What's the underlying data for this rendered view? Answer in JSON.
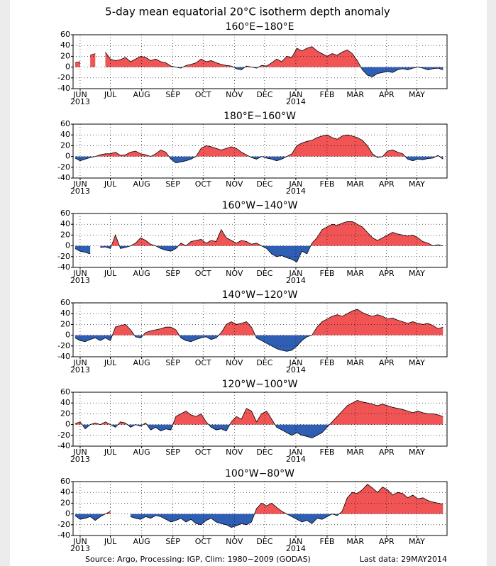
{
  "title": "5-day mean equatorial 20°C isotherm depth anomaly",
  "source": "Source: Argo, Processing: IGP, Clim: 1980−2009 (GODAS)",
  "last_data": "Last data: 29MAY2014",
  "chart_data": [
    {
      "type": "area",
      "title": "160°E−180°E",
      "pos_color": "#f05454",
      "neg_color": "#2f5fb4",
      "grid": true,
      "xlim": [
        -7,
        364
      ],
      "ylim": [
        -40,
        60
      ],
      "yticks": [
        -40,
        -20,
        0,
        20,
        40,
        60
      ],
      "xticks": [
        {
          "value": 0,
          "label": "JUN"
        },
        {
          "value": 30,
          "label": "JUL"
        },
        {
          "value": 61,
          "label": "AUG"
        },
        {
          "value": 92,
          "label": "SEP"
        },
        {
          "value": 122,
          "label": "OCT"
        },
        {
          "value": 153,
          "label": "NOV"
        },
        {
          "value": 183,
          "label": "DEC"
        },
        {
          "value": 214,
          "label": "JAN"
        },
        {
          "value": 245,
          "label": "FEB"
        },
        {
          "value": 273,
          "label": "MAR"
        },
        {
          "value": 304,
          "label": "APR"
        },
        {
          "value": 334,
          "label": "MAY"
        }
      ],
      "year_labels": [
        {
          "value": 0,
          "label": "2013"
        },
        {
          "value": 214,
          "label": "2014"
        }
      ],
      "x": [
        -5,
        0,
        5,
        10,
        15,
        20,
        25,
        30,
        35,
        40,
        45,
        50,
        55,
        60,
        65,
        70,
        75,
        80,
        85,
        90,
        95,
        100,
        105,
        110,
        115,
        120,
        125,
        130,
        135,
        140,
        145,
        150,
        155,
        160,
        165,
        170,
        175,
        180,
        185,
        190,
        195,
        200,
        205,
        210,
        215,
        220,
        225,
        230,
        235,
        240,
        245,
        250,
        255,
        260,
        265,
        270,
        275,
        280,
        285,
        290,
        295,
        300,
        305,
        310,
        315,
        320,
        325,
        330,
        335,
        340,
        345,
        350,
        355,
        360
      ],
      "values": [
        8,
        10,
        null,
        22,
        25,
        null,
        28,
        15,
        12,
        14,
        18,
        10,
        15,
        20,
        18,
        12,
        15,
        10,
        8,
        2,
        0,
        -2,
        3,
        5,
        8,
        15,
        10,
        12,
        8,
        5,
        3,
        2,
        -3,
        -5,
        2,
        0,
        -2,
        3,
        2,
        8,
        15,
        10,
        20,
        18,
        35,
        30,
        35,
        38,
        30,
        25,
        20,
        25,
        22,
        28,
        32,
        25,
        12,
        -5,
        -15,
        -18,
        -12,
        -10,
        -8,
        -10,
        -5,
        -3,
        -5,
        -2,
        0,
        -2,
        -5,
        -3,
        -2,
        -5
      ]
    },
    {
      "type": "area",
      "title": "180°E−160°W",
      "pos_color": "#f05454",
      "neg_color": "#2f5fb4",
      "grid": true,
      "xlim": [
        -7,
        364
      ],
      "ylim": [
        -40,
        60
      ],
      "yticks": [
        -40,
        -20,
        0,
        20,
        40,
        60
      ],
      "xticks": [
        {
          "value": 0,
          "label": "JUN"
        },
        {
          "value": 30,
          "label": "JUL"
        },
        {
          "value": 61,
          "label": "AUG"
        },
        {
          "value": 92,
          "label": "SEP"
        },
        {
          "value": 122,
          "label": "OCT"
        },
        {
          "value": 153,
          "label": "NOV"
        },
        {
          "value": 183,
          "label": "DEC"
        },
        {
          "value": 214,
          "label": "JAN"
        },
        {
          "value": 245,
          "label": "FEB"
        },
        {
          "value": 273,
          "label": "MAR"
        },
        {
          "value": 304,
          "label": "APR"
        },
        {
          "value": 334,
          "label": "MAY"
        }
      ],
      "year_labels": [
        {
          "value": 0,
          "label": "2013"
        },
        {
          "value": 214,
          "label": "2014"
        }
      ],
      "x": [
        -5,
        0,
        5,
        10,
        15,
        20,
        25,
        30,
        35,
        40,
        45,
        50,
        55,
        60,
        65,
        70,
        75,
        80,
        85,
        90,
        95,
        100,
        105,
        110,
        115,
        120,
        125,
        130,
        135,
        140,
        145,
        150,
        155,
        160,
        165,
        170,
        175,
        180,
        185,
        190,
        195,
        200,
        205,
        210,
        215,
        220,
        225,
        230,
        235,
        240,
        245,
        250,
        255,
        260,
        265,
        270,
        275,
        280,
        285,
        290,
        295,
        300,
        305,
        310,
        315,
        320,
        325,
        330,
        335,
        340,
        345,
        350,
        355,
        360
      ],
      "values": [
        -3,
        -8,
        -5,
        -2,
        0,
        3,
        5,
        5,
        8,
        2,
        3,
        8,
        10,
        5,
        3,
        0,
        5,
        12,
        8,
        -5,
        -12,
        -10,
        -8,
        -5,
        0,
        15,
        20,
        18,
        15,
        12,
        15,
        18,
        15,
        8,
        3,
        -2,
        -5,
        0,
        -3,
        -5,
        -8,
        -5,
        0,
        5,
        20,
        25,
        28,
        30,
        35,
        38,
        40,
        35,
        32,
        38,
        40,
        38,
        35,
        30,
        20,
        5,
        -2,
        0,
        10,
        12,
        8,
        5,
        -5,
        -8,
        -5,
        -6,
        -4,
        -3,
        2,
        -5
      ]
    },
    {
      "type": "area",
      "title": "160°W−140°W",
      "pos_color": "#f05454",
      "neg_color": "#2f5fb4",
      "grid": true,
      "xlim": [
        -7,
        364
      ],
      "ylim": [
        -40,
        60
      ],
      "yticks": [
        -40,
        -20,
        0,
        20,
        40,
        60
      ],
      "xticks": [
        {
          "value": 0,
          "label": "JUN"
        },
        {
          "value": 30,
          "label": "JUL"
        },
        {
          "value": 61,
          "label": "AUG"
        },
        {
          "value": 92,
          "label": "SEP"
        },
        {
          "value": 122,
          "label": "OCT"
        },
        {
          "value": 153,
          "label": "NOV"
        },
        {
          "value": 183,
          "label": "DEC"
        },
        {
          "value": 214,
          "label": "JAN"
        },
        {
          "value": 245,
          "label": "FEB"
        },
        {
          "value": 273,
          "label": "MAR"
        },
        {
          "value": 304,
          "label": "APR"
        },
        {
          "value": 334,
          "label": "MAY"
        }
      ],
      "year_labels": [
        {
          "value": 0,
          "label": "2013"
        },
        {
          "value": 214,
          "label": "2014"
        }
      ],
      "x": [
        -5,
        0,
        5,
        10,
        15,
        20,
        25,
        30,
        35,
        40,
        45,
        50,
        55,
        60,
        65,
        70,
        75,
        80,
        85,
        90,
        95,
        100,
        105,
        110,
        115,
        120,
        125,
        130,
        135,
        140,
        145,
        150,
        155,
        160,
        165,
        170,
        175,
        180,
        185,
        190,
        195,
        200,
        205,
        210,
        215,
        220,
        225,
        230,
        235,
        240,
        245,
        250,
        255,
        260,
        265,
        270,
        275,
        280,
        285,
        290,
        295,
        300,
        305,
        310,
        315,
        320,
        325,
        330,
        335,
        340,
        345,
        350,
        355,
        360
      ],
      "values": [
        -5,
        -10,
        -12,
        -15,
        null,
        -3,
        -2,
        -5,
        20,
        -5,
        -3,
        0,
        5,
        15,
        10,
        3,
        0,
        -5,
        -8,
        -10,
        -5,
        5,
        0,
        8,
        10,
        12,
        5,
        10,
        8,
        30,
        15,
        10,
        5,
        10,
        8,
        3,
        5,
        0,
        -5,
        -15,
        -20,
        -18,
        -22,
        -25,
        -30,
        -10,
        -15,
        5,
        15,
        30,
        35,
        40,
        38,
        42,
        45,
        45,
        40,
        35,
        25,
        15,
        10,
        15,
        20,
        25,
        22,
        20,
        18,
        20,
        15,
        8,
        5,
        0,
        2,
        0
      ]
    },
    {
      "type": "area",
      "title": "140°W−120°W",
      "pos_color": "#f05454",
      "neg_color": "#2f5fb4",
      "grid": true,
      "xlim": [
        -7,
        364
      ],
      "ylim": [
        -40,
        60
      ],
      "yticks": [
        -40,
        -20,
        0,
        20,
        40,
        60
      ],
      "xticks": [
        {
          "value": 0,
          "label": "JUN"
        },
        {
          "value": 30,
          "label": "JUL"
        },
        {
          "value": 61,
          "label": "AUG"
        },
        {
          "value": 92,
          "label": "SEP"
        },
        {
          "value": 122,
          "label": "OCT"
        },
        {
          "value": 153,
          "label": "NOV"
        },
        {
          "value": 183,
          "label": "DEC"
        },
        {
          "value": 214,
          "label": "JAN"
        },
        {
          "value": 245,
          "label": "FEB"
        },
        {
          "value": 273,
          "label": "MAR"
        },
        {
          "value": 304,
          "label": "APR"
        },
        {
          "value": 334,
          "label": "MAY"
        }
      ],
      "year_labels": [
        {
          "value": 0,
          "label": "2013"
        },
        {
          "value": 214,
          "label": "2014"
        }
      ],
      "x": [
        -5,
        0,
        5,
        10,
        15,
        20,
        25,
        30,
        35,
        40,
        45,
        50,
        55,
        60,
        65,
        70,
        75,
        80,
        85,
        90,
        95,
        100,
        105,
        110,
        115,
        120,
        125,
        130,
        135,
        140,
        145,
        150,
        155,
        160,
        165,
        170,
        175,
        180,
        185,
        190,
        195,
        200,
        205,
        210,
        215,
        220,
        225,
        230,
        235,
        240,
        245,
        250,
        255,
        260,
        265,
        270,
        275,
        280,
        285,
        290,
        295,
        300,
        305,
        310,
        315,
        320,
        325,
        330,
        335,
        340,
        345,
        350,
        355,
        360
      ],
      "values": [
        -5,
        -10,
        -12,
        -8,
        -5,
        -10,
        -5,
        -10,
        15,
        18,
        20,
        10,
        -3,
        -5,
        5,
        8,
        10,
        12,
        15,
        15,
        10,
        -5,
        -10,
        -12,
        -8,
        -5,
        -3,
        -8,
        -5,
        5,
        20,
        25,
        20,
        22,
        25,
        15,
        -5,
        -10,
        -15,
        -20,
        -25,
        -28,
        -30,
        -28,
        -20,
        -10,
        -3,
        0,
        15,
        25,
        30,
        35,
        38,
        35,
        40,
        45,
        48,
        42,
        38,
        35,
        38,
        35,
        30,
        32,
        28,
        25,
        22,
        25,
        22,
        20,
        22,
        18,
        12,
        15
      ]
    },
    {
      "type": "area",
      "title": "120°W−100°W",
      "pos_color": "#f05454",
      "neg_color": "#2f5fb4",
      "grid": true,
      "xlim": [
        -7,
        364
      ],
      "ylim": [
        -40,
        60
      ],
      "yticks": [
        -40,
        -20,
        0,
        20,
        40,
        60
      ],
      "xticks": [
        {
          "value": 0,
          "label": "JUN"
        },
        {
          "value": 30,
          "label": "JUL"
        },
        {
          "value": 61,
          "label": "AUG"
        },
        {
          "value": 92,
          "label": "SEP"
        },
        {
          "value": 122,
          "label": "OCT"
        },
        {
          "value": 153,
          "label": "NOV"
        },
        {
          "value": 183,
          "label": "DEC"
        },
        {
          "value": 214,
          "label": "JAN"
        },
        {
          "value": 245,
          "label": "FEB"
        },
        {
          "value": 273,
          "label": "MAR"
        },
        {
          "value": 304,
          "label": "APR"
        },
        {
          "value": 334,
          "label": "MAY"
        }
      ],
      "year_labels": [
        {
          "value": 0,
          "label": "2013"
        },
        {
          "value": 214,
          "label": "2014"
        }
      ],
      "x": [
        -5,
        0,
        5,
        10,
        15,
        20,
        25,
        30,
        35,
        40,
        45,
        50,
        55,
        60,
        65,
        70,
        75,
        80,
        85,
        90,
        95,
        100,
        105,
        110,
        115,
        120,
        125,
        130,
        135,
        140,
        145,
        150,
        155,
        160,
        165,
        170,
        175,
        180,
        185,
        190,
        195,
        200,
        205,
        210,
        215,
        220,
        225,
        230,
        235,
        240,
        245,
        250,
        255,
        260,
        265,
        270,
        275,
        280,
        285,
        290,
        295,
        300,
        305,
        310,
        315,
        320,
        325,
        330,
        335,
        340,
        345,
        350,
        355,
        360
      ],
      "values": [
        2,
        5,
        -8,
        0,
        3,
        0,
        5,
        0,
        -5,
        5,
        3,
        -5,
        0,
        -3,
        3,
        -10,
        -5,
        -12,
        -8,
        -10,
        15,
        20,
        25,
        18,
        15,
        20,
        5,
        -5,
        -10,
        -8,
        -12,
        5,
        15,
        10,
        30,
        25,
        5,
        20,
        25,
        10,
        -5,
        -10,
        -15,
        -20,
        -15,
        -20,
        -22,
        -25,
        -20,
        -15,
        -5,
        5,
        15,
        25,
        35,
        40,
        45,
        42,
        40,
        38,
        35,
        38,
        35,
        32,
        30,
        28,
        25,
        22,
        25,
        22,
        20,
        20,
        18,
        15
      ]
    },
    {
      "type": "area",
      "title": "100°W−80°W",
      "pos_color": "#f05454",
      "neg_color": "#2f5fb4",
      "grid": true,
      "xlim": [
        -7,
        364
      ],
      "ylim": [
        -40,
        60
      ],
      "yticks": [
        -40,
        -20,
        0,
        20,
        40,
        60
      ],
      "xticks": [
        {
          "value": 0,
          "label": "JUN"
        },
        {
          "value": 30,
          "label": "JUL"
        },
        {
          "value": 61,
          "label": "AUG"
        },
        {
          "value": 92,
          "label": "SEP"
        },
        {
          "value": 122,
          "label": "OCT"
        },
        {
          "value": 153,
          "label": "NOV"
        },
        {
          "value": 183,
          "label": "DEC"
        },
        {
          "value": 214,
          "label": "JAN"
        },
        {
          "value": 245,
          "label": "FEB"
        },
        {
          "value": 273,
          "label": "MAR"
        },
        {
          "value": 304,
          "label": "APR"
        },
        {
          "value": 334,
          "label": "MAY"
        }
      ],
      "year_labels": [
        {
          "value": 0,
          "label": "2013"
        },
        {
          "value": 214,
          "label": "2014"
        }
      ],
      "x": [
        -5,
        0,
        5,
        10,
        15,
        20,
        25,
        30,
        35,
        40,
        45,
        50,
        55,
        60,
        65,
        70,
        75,
        80,
        85,
        90,
        95,
        100,
        105,
        110,
        115,
        120,
        125,
        130,
        135,
        140,
        145,
        150,
        155,
        160,
        165,
        170,
        175,
        180,
        185,
        190,
        195,
        200,
        205,
        210,
        215,
        220,
        225,
        230,
        235,
        240,
        245,
        250,
        255,
        260,
        265,
        270,
        275,
        280,
        285,
        290,
        295,
        300,
        305,
        310,
        315,
        320,
        325,
        330,
        335,
        340,
        345,
        350,
        355,
        360
      ],
      "values": [
        -3,
        -10,
        -8,
        -5,
        -12,
        -5,
        0,
        5,
        null,
        8,
        null,
        -5,
        -8,
        -10,
        -5,
        -8,
        -3,
        -5,
        -10,
        -15,
        -12,
        -8,
        -15,
        -10,
        -18,
        -20,
        -12,
        -8,
        -15,
        -18,
        -20,
        -25,
        -22,
        -18,
        -20,
        -15,
        10,
        20,
        15,
        20,
        12,
        5,
        0,
        -5,
        -10,
        -15,
        -12,
        -18,
        -8,
        -10,
        -5,
        0,
        -3,
        5,
        30,
        40,
        38,
        45,
        55,
        48,
        40,
        50,
        45,
        35,
        40,
        38,
        30,
        35,
        28,
        30,
        25,
        22,
        20,
        18
      ]
    }
  ]
}
